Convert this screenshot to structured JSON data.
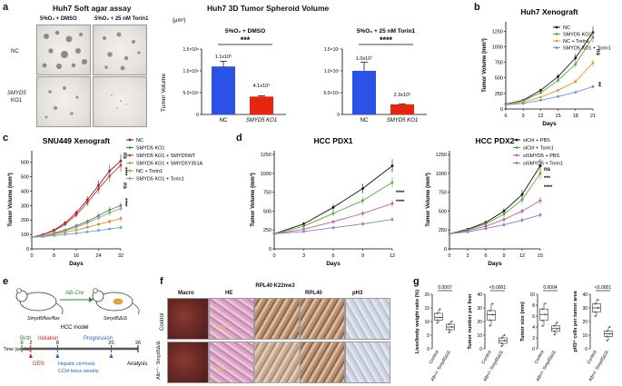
{
  "panels": {
    "a": "a",
    "b": "b",
    "c": "c",
    "d": "d",
    "e": "e",
    "f": "f",
    "g": "g"
  },
  "panel_a": {
    "title": "Huh7 Soft agar assay",
    "col1": "5%O₂ + DMSO",
    "col2": "5%O₂ + 25 nM Torin1",
    "row1": "NC",
    "row2_line1": "SMYD5",
    "row2_line2": "KO1"
  },
  "spheroid": {
    "title": "Huh7 3D Tumor Spheroid Volume",
    "unit": "(μm³)",
    "ylabel": "Tumor Volume",
    "left": {
      "subtitle": "5%O₂ + DMSO",
      "yticks": [
        "1.5×10⁶",
        "1.0×10⁶",
        "5.0×10⁵",
        "0"
      ],
      "label_nc": "1.1x10⁶",
      "label_ko": "4.1x10⁵",
      "sig": "***",
      "xlabels": [
        "NC",
        "SMYD5 KO1"
      ]
    },
    "right": {
      "subtitle": "5%O₂ + 25 nM Torin1",
      "yticks": [
        "1.5×10⁷",
        "1.0×10⁷",
        "5.0×10⁶",
        "0"
      ],
      "label_nc": "1.0x10⁷",
      "label_ko": "2.3x10⁶",
      "sig": "****",
      "xlabels": [
        "NC",
        "SMYD5 KO1"
      ]
    }
  },
  "panel_e": {
    "alb_cre": "Alb-Cre",
    "mouse1": "Smyd5flox/flox",
    "mouse2": "Smyd5Δ/Δ",
    "model": "HCC model",
    "time": "Time (weeks)",
    "birth": "Birth",
    "initiation": "Initiation",
    "progression": "Progression",
    "den": "DEN",
    "hepatic": "Hepatic cirrhosis",
    "ccl4": "CCl4 twice weekly",
    "analysis": "Analysis",
    "ticks": [
      "0",
      "2",
      "8",
      "20",
      "26"
    ]
  },
  "panel_f": {
    "cols": [
      "Macro",
      "HE",
      "RPL40 K22me3",
      "RPL40",
      "pH3"
    ],
    "row1": "Control",
    "row2": "Alb⁺ʳ⁻ Smyd5Δ/Δ",
    "tumor": "Tumor"
  },
  "chart_data": [
    {
      "type": "bar",
      "title": "Huh7 3D Tumor Spheroid Volume",
      "subtitle": "5%O₂ + DMSO",
      "ylabel": "Tumor Volume",
      "categories": [
        "NC",
        "SMYD5 KO1"
      ],
      "values": [
        1100000,
        410000
      ],
      "errors": [
        120000,
        20000
      ],
      "colors": [
        "#2a52e8",
        "#e8260f"
      ],
      "ylim": [
        0,
        1500000
      ]
    },
    {
      "type": "bar",
      "title": "Huh7 3D Tumor Spheroid Volume",
      "subtitle": "5%O₂ + 25 nM Torin1",
      "ylabel": "Tumor Volume",
      "categories": [
        "NC",
        "SMYD5 KO1"
      ],
      "values": [
        10000000,
        2300000
      ],
      "errors": [
        2000000,
        150000
      ],
      "colors": [
        "#2a52e8",
        "#e8260f"
      ],
      "ylim": [
        0,
        15000000
      ]
    },
    {
      "type": "line",
      "title": "Huh7  Xenograft",
      "ylabel": "Tumor Volume (mm³)",
      "xlabel": "Days",
      "x": [
        6,
        9,
        12,
        15,
        18,
        21
      ],
      "xticks": [
        "6",
        "9",
        "12",
        "15",
        "18",
        "21"
      ],
      "yticks": [
        "0",
        "250",
        "500",
        "750",
        "1000",
        "1250"
      ],
      "ylim": [
        0,
        1400
      ],
      "annotations": [
        "ns",
        "**"
      ],
      "series": [
        {
          "name": "NC",
          "color": "#111111",
          "values": [
            80,
            140,
            300,
            520,
            820,
            1230
          ]
        },
        {
          "name": "SMYD5 KO1",
          "color": "#5aa83a",
          "values": [
            75,
            130,
            260,
            460,
            720,
            1150
          ]
        },
        {
          "name": "NC + Torin1",
          "color": "#e39a2a",
          "values": [
            70,
            110,
            190,
            300,
            440,
            740
          ]
        },
        {
          "name": "SMYD5 KO1 + Torin1",
          "color": "#6f8fd6",
          "values": [
            65,
            90,
            140,
            200,
            270,
            360
          ]
        }
      ]
    },
    {
      "type": "line",
      "title": "SNU449 Xenograft",
      "ylabel": "Tumor Volume (mm³)",
      "xlabel": "Days",
      "x": [
        0,
        4,
        8,
        12,
        16,
        20,
        24,
        28,
        32
      ],
      "xticks": [
        "0",
        "8",
        "16",
        "24",
        "32"
      ],
      "yticks": [
        "0",
        "100",
        "200",
        "300",
        "400",
        "500",
        "600"
      ],
      "ylim": [
        0,
        680
      ],
      "annotations": [
        "ns",
        "****",
        "ns",
        "****"
      ],
      "series": [
        {
          "name": "NC",
          "color": "#8b1a1a",
          "values": [
            80,
            100,
            130,
            180,
            250,
            340,
            440,
            540,
            610
          ]
        },
        {
          "name": "SMYD5 KO1",
          "color": "#3e8a3e",
          "values": [
            80,
            90,
            110,
            130,
            160,
            190,
            230,
            270,
            300
          ]
        },
        {
          "name": "SMYD5 KO1 + SMYD5WT",
          "color": "#c23b3b",
          "values": [
            80,
            98,
            125,
            170,
            235,
            320,
            415,
            505,
            580
          ]
        },
        {
          "name": "SMYD5 KO1 + SMYD5Y351A",
          "color": "#9a9a9a",
          "values": [
            80,
            90,
            105,
            125,
            150,
            180,
            215,
            250,
            280
          ]
        },
        {
          "name": "NC + Torin1",
          "color": "#e08a2a",
          "values": [
            80,
            88,
            100,
            115,
            130,
            150,
            170,
            190,
            210
          ]
        },
        {
          "name": "SMYD5 KO1 + Torin1",
          "color": "#6fa0d8",
          "values": [
            80,
            85,
            92,
            100,
            108,
            118,
            128,
            138,
            148
          ]
        }
      ]
    },
    {
      "type": "line",
      "title": "HCC PDX1",
      "ylabel": "Tumor Volume (mm³)",
      "xlabel": "Days",
      "x": [
        0,
        3,
        6,
        9,
        12
      ],
      "xticks": [
        "0",
        "3",
        "6",
        "9",
        "12"
      ],
      "yticks": [
        "0",
        "250",
        "500",
        "750",
        "1000",
        "1250"
      ],
      "ylim": [
        0,
        1300
      ],
      "annotations": [
        "****",
        "****"
      ],
      "series": [
        {
          "name": "siCtrl + PBS",
          "color": "#111111",
          "values": [
            200,
            330,
            550,
            800,
            1100
          ]
        },
        {
          "name": "siCtrl + Torin1",
          "color": "#5aa83a",
          "values": [
            200,
            300,
            470,
            640,
            880
          ]
        },
        {
          "name": "siSMYD5 + PBS",
          "color": "#c06090",
          "values": [
            200,
            260,
            360,
            470,
            600
          ]
        },
        {
          "name": "siSMYD5 + Torin1",
          "color": "#8a7cc8",
          "values": [
            200,
            230,
            280,
            330,
            390
          ]
        }
      ]
    },
    {
      "type": "line",
      "title": "HCC PDX2",
      "ylabel": "Tumor Volume (mm³)",
      "xlabel": "Days",
      "x": [
        0,
        3,
        6,
        9,
        12,
        15
      ],
      "xticks": [
        "0",
        "3",
        "6",
        "9",
        "12",
        "15"
      ],
      "yticks": [
        "0",
        "250",
        "500",
        "750",
        "1000",
        "1250"
      ],
      "ylim": [
        0,
        1300
      ],
      "annotations": [
        "ns",
        "***",
        "****"
      ],
      "series": [
        {
          "name": "siCtrl + PBS",
          "color": "#111111",
          "values": [
            200,
            260,
            350,
            500,
            720,
            1100
          ]
        },
        {
          "name": "siCtrl + Torin1",
          "color": "#5aa83a",
          "values": [
            200,
            250,
            330,
            460,
            650,
            1000
          ]
        },
        {
          "name": "siSMYD5 + PBS",
          "color": "#c06090",
          "values": [
            200,
            240,
            300,
            390,
            500,
            640
          ]
        },
        {
          "name": "siSMYD5 + Torin1",
          "color": "#8a7cc8",
          "values": [
            200,
            225,
            270,
            320,
            380,
            450
          ]
        }
      ]
    },
    {
      "type": "box",
      "ylabel": "Liver/body weight ratio (%)",
      "categories": [
        "Control",
        "Alb+/- Smyd5Δ/Δ"
      ],
      "pvalue": "0.0007",
      "yticks": [
        "0",
        "5",
        "10",
        "15",
        "20"
      ],
      "ylim": [
        0,
        20
      ],
      "boxes": [
        {
          "min": 9.5,
          "q1": 10.5,
          "median": 11.5,
          "q3": 13,
          "max": 14.5
        },
        {
          "min": 6,
          "q1": 7,
          "median": 8,
          "q3": 9,
          "max": 10
        }
      ]
    },
    {
      "type": "box",
      "ylabel": "Tumor number per liver",
      "categories": [
        "Control",
        "Alb+/- Smyd5Δ/Δ"
      ],
      "pvalue": "<0.0001",
      "yticks": [
        "0",
        "10",
        "20",
        "30",
        "40"
      ],
      "ylim": [
        0,
        40
      ],
      "boxes": [
        {
          "min": 17,
          "q1": 21,
          "median": 25,
          "q3": 28,
          "max": 33
        },
        {
          "min": 2,
          "q1": 4,
          "median": 6,
          "q3": 8,
          "max": 10
        }
      ]
    },
    {
      "type": "box",
      "ylabel": "Tumor size (mm)",
      "categories": [
        "Control",
        "Alb+/- Smyd5Δ/Δ"
      ],
      "pvalue": "0.0004",
      "yticks": [
        "0",
        "2",
        "4",
        "6",
        "8",
        "10"
      ],
      "ylim": [
        0,
        10
      ],
      "boxes": [
        {
          "min": 4.2,
          "q1": 5.2,
          "median": 6.3,
          "q3": 7.3,
          "max": 8.3
        },
        {
          "min": 2.6,
          "q1": 3.2,
          "median": 3.7,
          "q3": 4.2,
          "max": 4.8
        }
      ]
    },
    {
      "type": "box",
      "ylabel": "pH3⁺ cells per tumor area",
      "categories": [
        "Control",
        "Alb+/- Smyd5Δ/Δ"
      ],
      "pvalue": "<0.0001",
      "yticks": [
        "0",
        "10",
        "20",
        "30",
        "40"
      ],
      "ylim": [
        0,
        40
      ],
      "boxes": [
        {
          "min": 24,
          "q1": 27,
          "median": 30,
          "q3": 33,
          "max": 36
        },
        {
          "min": 6,
          "q1": 9,
          "median": 11,
          "q3": 13,
          "max": 16
        }
      ]
    }
  ]
}
